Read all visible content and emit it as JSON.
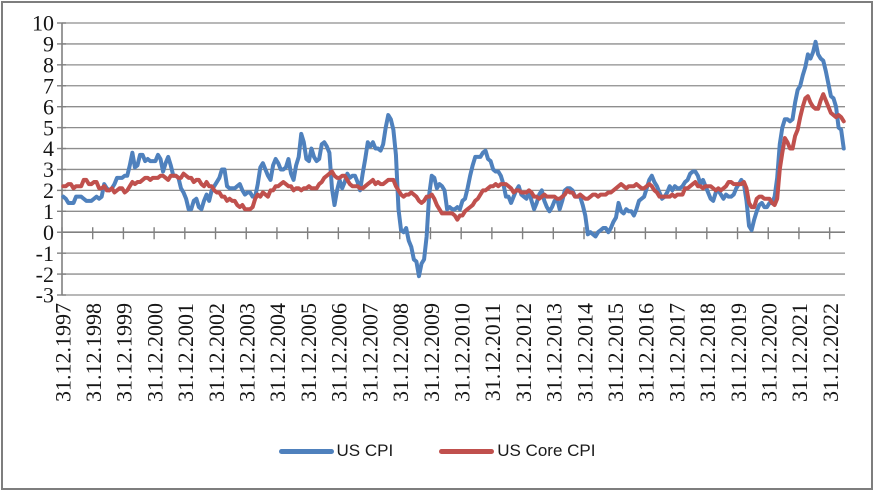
{
  "chart_data": {
    "type": "line",
    "title": "",
    "xlabel": "",
    "ylabel": "",
    "ylim": [
      -3,
      10
    ],
    "grid": true,
    "legend_position": "bottom",
    "frequency": "monthly",
    "start_period": "31.12.1997",
    "end_period": "31.05.2023",
    "y_tick_labels": [
      "10",
      "9",
      "8",
      "7",
      "6",
      "5",
      "4",
      "3",
      "2",
      "1",
      "0",
      "-1",
      "-2",
      "-3"
    ],
    "x_label_every_n_points": 12,
    "x_tick_labels": [
      "31.12.1997",
      "31.12.1998",
      "31.12.1999",
      "31.12.2000",
      "31.12.2001",
      "31.12.2002",
      "31.12.2003",
      "31.12.2004",
      "31.12.2005",
      "31.12.2006",
      "31.12.2007",
      "31.12.2008",
      "31.12.2009",
      "31.12.2010",
      "31.12.2011",
      "31.12.2012",
      "31.12.2013",
      "31.12.2014",
      "31.12.2015",
      "31.12.2016",
      "31.12.2017",
      "31.12.2018",
      "31.12.2019",
      "31.12.2020",
      "31.12.2021",
      "31.12.2022"
    ],
    "series": [
      {
        "name": "US CPI",
        "color": "#4F81BD",
        "values": [
          1.7,
          1.6,
          1.4,
          1.4,
          1.4,
          1.7,
          1.7,
          1.7,
          1.6,
          1.5,
          1.5,
          1.5,
          1.6,
          1.7,
          1.6,
          1.7,
          2.3,
          2.1,
          2.0,
          2.1,
          2.3,
          2.6,
          2.6,
          2.6,
          2.7,
          2.7,
          3.2,
          3.8,
          3.1,
          3.2,
          3.7,
          3.7,
          3.4,
          3.5,
          3.4,
          3.4,
          3.4,
          3.7,
          3.5,
          2.9,
          3.3,
          3.6,
          3.2,
          2.7,
          2.7,
          2.6,
          2.1,
          1.9,
          1.6,
          1.1,
          1.1,
          1.5,
          1.6,
          1.2,
          1.1,
          1.5,
          1.8,
          1.5,
          2.0,
          2.2,
          2.4,
          2.6,
          3.0,
          3.0,
          2.2,
          2.1,
          2.1,
          2.1,
          2.2,
          2.3,
          2.0,
          1.8,
          1.9,
          1.9,
          1.7,
          1.7,
          2.3,
          3.1,
          3.3,
          3.0,
          2.7,
          2.5,
          3.2,
          3.5,
          3.3,
          3.0,
          3.0,
          3.1,
          3.5,
          2.8,
          2.5,
          3.2,
          3.6,
          4.7,
          4.3,
          3.5,
          3.4,
          4.0,
          3.6,
          3.4,
          3.5,
          4.2,
          4.3,
          4.1,
          3.8,
          2.1,
          1.3,
          2.0,
          2.5,
          2.1,
          2.4,
          2.8,
          2.6,
          2.7,
          2.7,
          2.4,
          2.0,
          2.8,
          3.5,
          4.3,
          4.1,
          4.3,
          4.0,
          4.0,
          3.9,
          4.2,
          5.0,
          5.6,
          5.4,
          4.9,
          3.7,
          1.1,
          0.1,
          0.0,
          0.2,
          -0.4,
          -0.7,
          -1.3,
          -1.4,
          -2.1,
          -1.5,
          -1.3,
          -0.2,
          1.8,
          2.7,
          2.6,
          2.1,
          2.3,
          2.2,
          2.0,
          1.1,
          1.2,
          1.1,
          1.1,
          1.2,
          1.1,
          1.5,
          1.6,
          2.1,
          2.7,
          3.2,
          3.6,
          3.6,
          3.6,
          3.8,
          3.9,
          3.5,
          3.4,
          3.0,
          2.9,
          2.9,
          2.7,
          2.3,
          1.7,
          1.7,
          1.4,
          1.7,
          2.0,
          2.2,
          1.8,
          1.7,
          1.6,
          2.0,
          1.5,
          1.1,
          1.4,
          1.8,
          2.0,
          1.5,
          1.2,
          1.0,
          1.2,
          1.5,
          1.6,
          1.1,
          1.5,
          2.0,
          2.1,
          2.1,
          2.0,
          1.7,
          1.7,
          1.7,
          1.3,
          0.8,
          -0.1,
          0.0,
          -0.1,
          -0.2,
          0.0,
          0.1,
          0.2,
          0.2,
          0.0,
          0.2,
          0.5,
          0.7,
          1.4,
          1.0,
          0.9,
          1.1,
          1.0,
          1.0,
          0.8,
          1.1,
          1.5,
          1.6,
          1.7,
          2.1,
          2.5,
          2.7,
          2.4,
          2.2,
          1.9,
          1.6,
          1.7,
          1.9,
          2.2,
          2.0,
          2.2,
          2.1,
          2.1,
          2.2,
          2.4,
          2.5,
          2.8,
          2.9,
          2.9,
          2.7,
          2.3,
          2.5,
          2.2,
          1.9,
          1.6,
          1.5,
          1.9,
          2.0,
          1.8,
          1.6,
          1.8,
          1.7,
          1.7,
          1.8,
          2.1,
          2.3,
          2.5,
          2.3,
          1.5,
          0.3,
          0.1,
          0.6,
          1.0,
          1.3,
          1.4,
          1.2,
          1.2,
          1.4,
          1.4,
          1.7,
          2.6,
          4.2,
          5.0,
          5.4,
          5.4,
          5.3,
          5.4,
          6.2,
          6.8,
          7.0,
          7.5,
          7.9,
          8.5,
          8.3,
          8.6,
          9.1,
          8.5,
          8.3,
          8.2,
          7.7,
          7.1,
          6.5,
          6.4,
          6.0,
          5.0,
          4.9,
          4.0
        ]
      },
      {
        "name": "US Core CPI",
        "color": "#C0504D",
        "values": [
          2.2,
          2.2,
          2.3,
          2.3,
          2.1,
          2.2,
          2.2,
          2.2,
          2.5,
          2.5,
          2.3,
          2.3,
          2.4,
          2.4,
          2.1,
          2.1,
          2.2,
          2.0,
          2.0,
          2.1,
          1.9,
          2.0,
          2.1,
          2.1,
          1.9,
          2.0,
          2.2,
          2.4,
          2.3,
          2.4,
          2.4,
          2.5,
          2.6,
          2.6,
          2.5,
          2.6,
          2.6,
          2.6,
          2.7,
          2.7,
          2.6,
          2.5,
          2.7,
          2.7,
          2.7,
          2.6,
          2.6,
          2.8,
          2.7,
          2.6,
          2.6,
          2.4,
          2.5,
          2.5,
          2.3,
          2.2,
          2.4,
          2.2,
          2.2,
          2.0,
          1.9,
          1.9,
          1.7,
          1.7,
          1.5,
          1.6,
          1.5,
          1.5,
          1.3,
          1.2,
          1.3,
          1.1,
          1.1,
          1.1,
          1.2,
          1.6,
          1.8,
          1.7,
          1.9,
          1.8,
          1.7,
          2.0,
          2.0,
          2.2,
          2.2,
          2.3,
          2.4,
          2.3,
          2.2,
          2.2,
          2.0,
          2.1,
          2.1,
          2.0,
          2.1,
          2.1,
          2.2,
          2.1,
          2.1,
          2.1,
          2.3,
          2.4,
          2.6,
          2.7,
          2.8,
          2.9,
          2.7,
          2.6,
          2.6,
          2.7,
          2.7,
          2.5,
          2.3,
          2.2,
          2.2,
          2.2,
          2.1,
          2.1,
          2.2,
          2.3,
          2.4,
          2.5,
          2.3,
          2.4,
          2.3,
          2.3,
          2.4,
          2.5,
          2.5,
          2.5,
          2.2,
          2.0,
          1.8,
          1.7,
          1.8,
          1.8,
          1.9,
          1.8,
          1.7,
          1.5,
          1.4,
          1.5,
          1.7,
          1.7,
          1.8,
          1.6,
          1.3,
          1.1,
          0.9,
          0.9,
          0.9,
          0.9,
          0.9,
          0.8,
          0.6,
          0.8,
          0.8,
          1.0,
          1.1,
          1.2,
          1.3,
          1.5,
          1.6,
          1.8,
          2.0,
          2.0,
          2.1,
          2.2,
          2.2,
          2.3,
          2.2,
          2.3,
          2.3,
          2.3,
          2.2,
          2.1,
          1.9,
          2.0,
          2.0,
          1.9,
          1.9,
          1.9,
          2.0,
          1.9,
          1.7,
          1.7,
          1.6,
          1.7,
          1.8,
          1.7,
          1.7,
          1.7,
          1.7,
          1.6,
          1.6,
          1.7,
          1.8,
          2.0,
          1.9,
          1.9,
          1.7,
          1.7,
          1.8,
          1.7,
          1.6,
          1.6,
          1.7,
          1.8,
          1.8,
          1.7,
          1.8,
          1.8,
          1.8,
          1.9,
          1.9,
          2.0,
          2.1,
          2.2,
          2.3,
          2.2,
          2.1,
          2.2,
          2.2,
          2.2,
          2.3,
          2.2,
          2.1,
          2.1,
          2.2,
          2.3,
          2.2,
          2.0,
          1.9,
          1.7,
          1.7,
          1.7,
          1.7,
          1.7,
          1.8,
          1.7,
          1.8,
          1.8,
          1.8,
          2.1,
          2.1,
          2.2,
          2.3,
          2.4,
          2.2,
          2.2,
          2.1,
          2.2,
          2.2,
          2.2,
          2.1,
          2.0,
          2.1,
          2.0,
          2.1,
          2.2,
          2.4,
          2.4,
          2.3,
          2.3,
          2.3,
          2.3,
          2.4,
          2.1,
          1.4,
          1.2,
          1.2,
          1.6,
          1.7,
          1.7,
          1.6,
          1.6,
          1.6,
          1.4,
          1.3,
          1.6,
          3.0,
          3.8,
          4.5,
          4.3,
          4.0,
          4.0,
          4.6,
          4.9,
          5.5,
          6.0,
          6.4,
          6.5,
          6.2,
          6.0,
          5.9,
          5.9,
          6.3,
          6.6,
          6.3,
          6.0,
          5.7,
          5.6,
          5.5,
          5.6,
          5.5,
          5.3
        ]
      }
    ]
  },
  "legend": {
    "items": [
      {
        "label": "US CPI"
      },
      {
        "label": "US Core CPI"
      }
    ]
  },
  "colors": {
    "grid": "#8d8d8d",
    "axis": "#808080",
    "frame_border": "#7e7e7e",
    "text": "#151515",
    "background": "#ffffff"
  }
}
